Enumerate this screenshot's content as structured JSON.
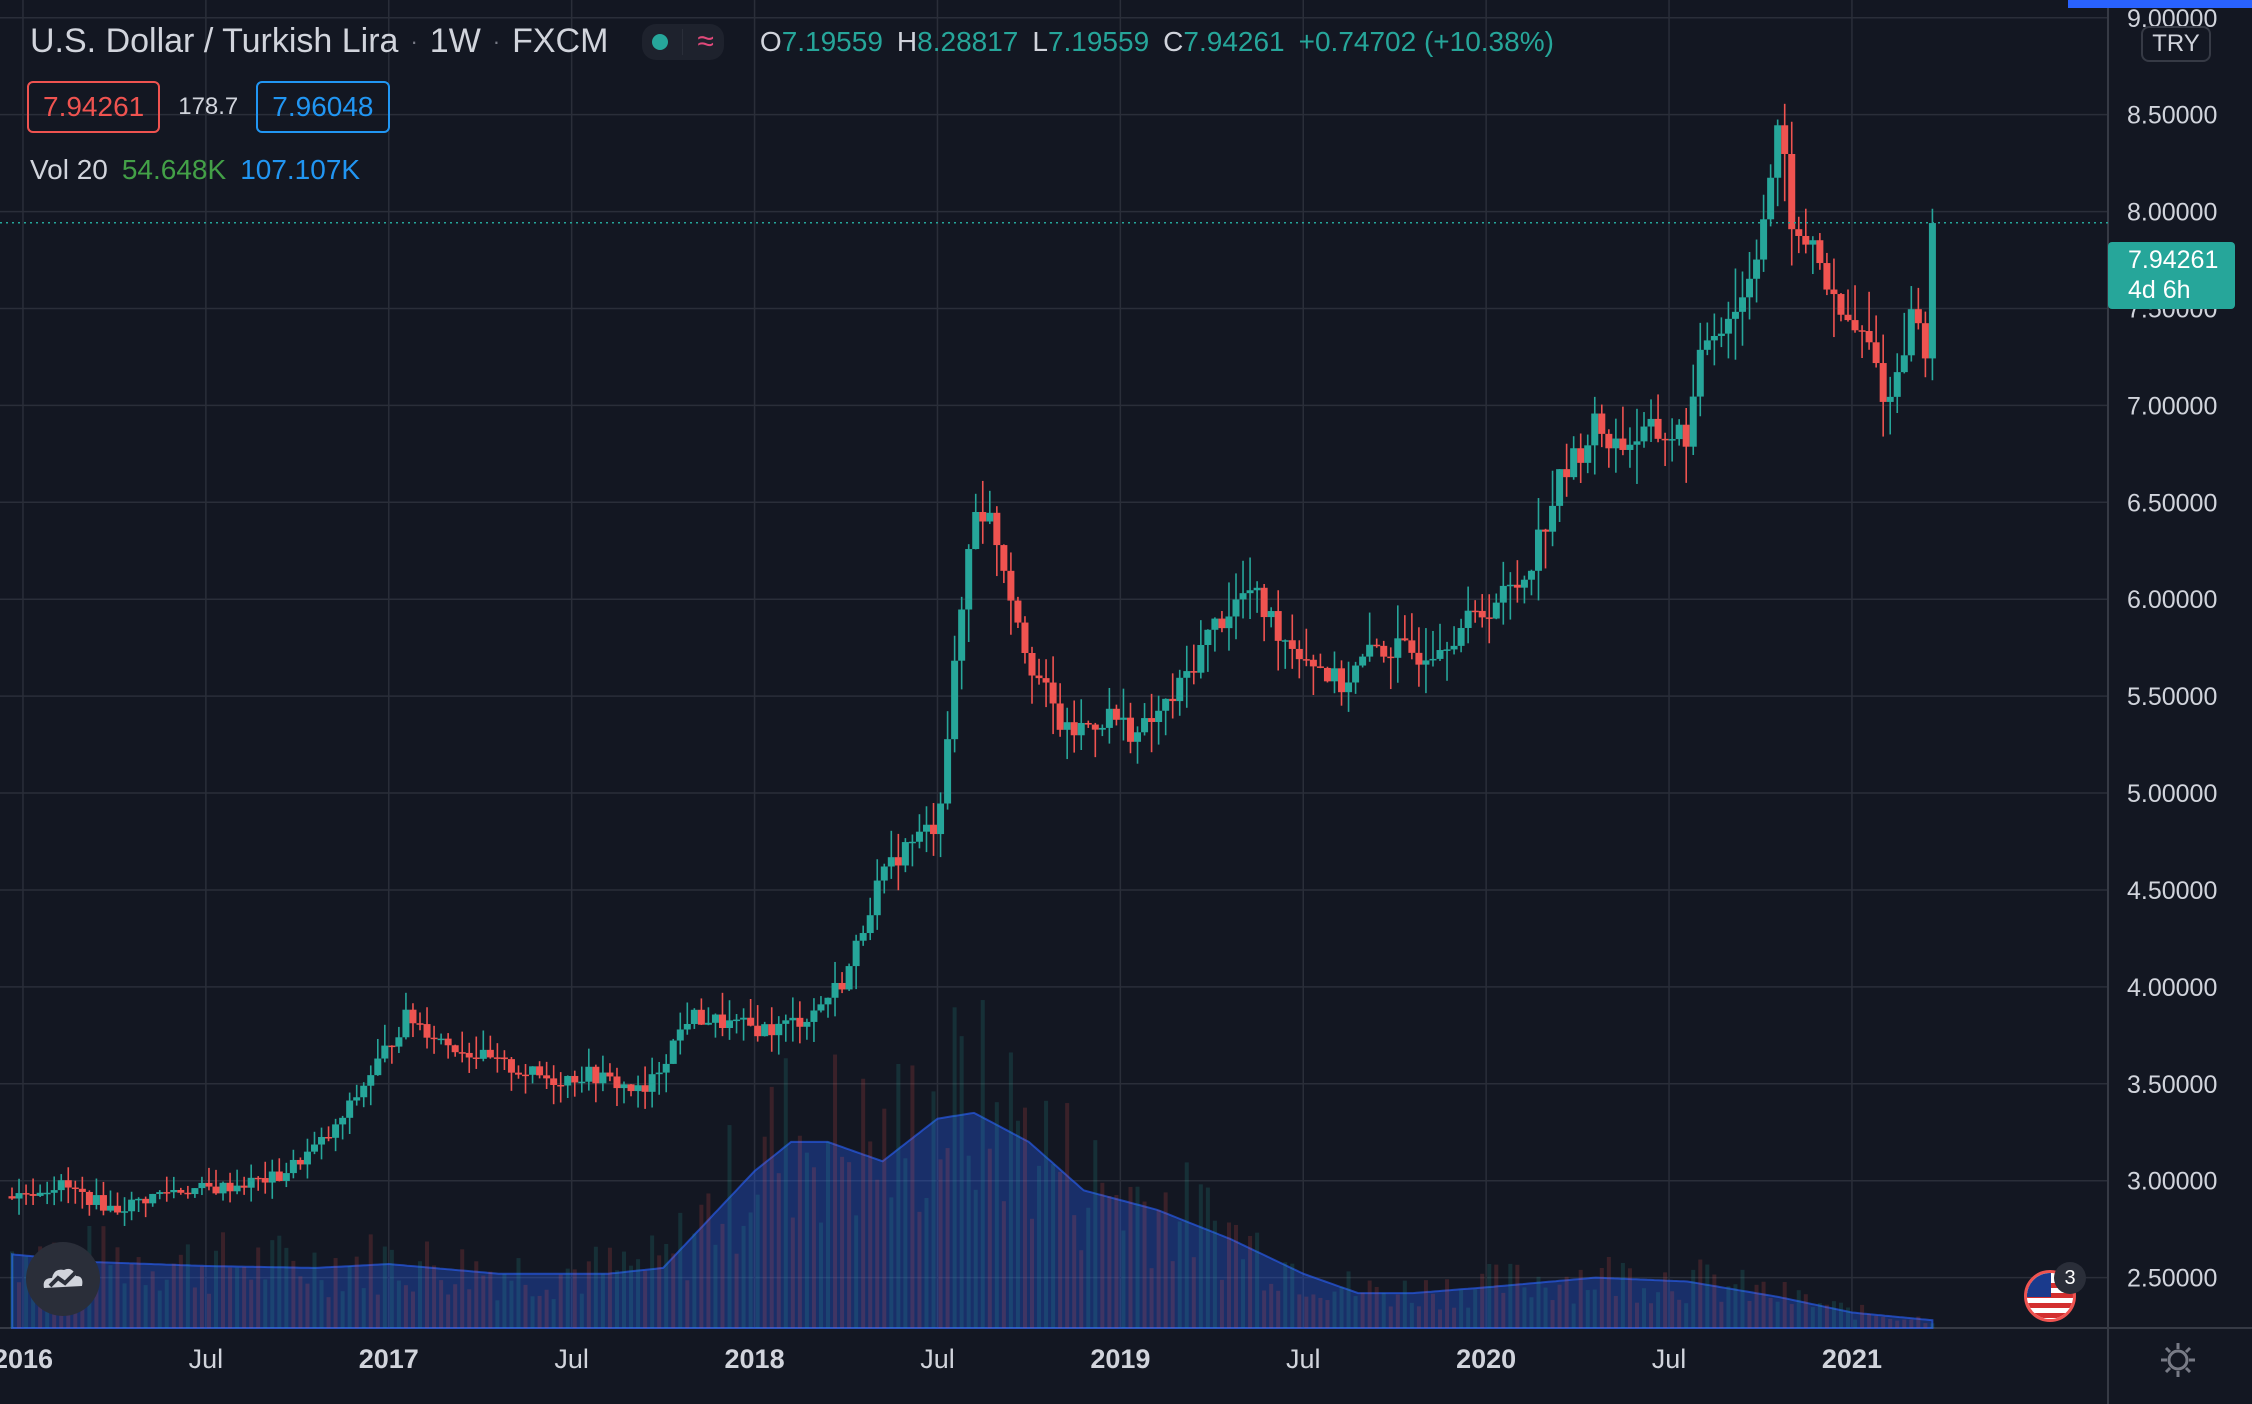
{
  "header": {
    "symbol_title": "U.S. Dollar / Turkish Lira",
    "interval": "1W",
    "exchange": "FXCM",
    "separator": "·",
    "ohlc": {
      "open_key": "O",
      "open": "7.19559",
      "high_key": "H",
      "high": "8.28817",
      "low_key": "L",
      "low": "7.19559",
      "close_key": "C",
      "close": "7.94261",
      "change": "+0.74702 (+10.38%)"
    }
  },
  "price_boxes": {
    "sell": "7.94261",
    "spread": "178.7",
    "buy": "7.96048"
  },
  "volume_legend": {
    "label": "Vol 20",
    "volume": "54.648K",
    "ma": "107.107K"
  },
  "currency_button": "TRY",
  "last_price_label": {
    "price": "7.94261",
    "countdown": "4d 6h"
  },
  "event_badge_count": "3",
  "colors": {
    "background": "#131722",
    "grid": "#2a2e39",
    "up": "#26a69a",
    "down": "#ef5350",
    "volume_area": "#2962ff",
    "text": "#d1d4dc"
  },
  "icons": [
    "tradingview-logo-icon",
    "us-flag-event-icon",
    "settings-gear-icon",
    "market-open-dot-icon",
    "wave-icon"
  ],
  "chart_data": {
    "type": "candlestick",
    "y_axis": {
      "ticks": [
        "9.00000",
        "8.50000",
        "8.00000",
        "7.50000",
        "7.00000",
        "6.50000",
        "6.00000",
        "5.50000",
        "5.00000",
        "4.50000",
        "4.00000",
        "3.50000",
        "3.00000",
        "2.50000"
      ],
      "range": [
        2.24,
        9.04
      ]
    },
    "x_axis": {
      "ticks": [
        {
          "label": "2016",
          "t": 2016.0,
          "bold": true
        },
        {
          "label": "Jul",
          "t": 2016.5,
          "bold": false
        },
        {
          "label": "2017",
          "t": 2017.0,
          "bold": true
        },
        {
          "label": "Jul",
          "t": 2017.5,
          "bold": false
        },
        {
          "label": "2018",
          "t": 2018.0,
          "bold": true
        },
        {
          "label": "Jul",
          "t": 2018.5,
          "bold": false
        },
        {
          "label": "2019",
          "t": 2019.0,
          "bold": true
        },
        {
          "label": "Jul",
          "t": 2019.5,
          "bold": false
        },
        {
          "label": "2020",
          "t": 2020.0,
          "bold": true
        },
        {
          "label": "Jul",
          "t": 2020.5,
          "bold": false
        },
        {
          "label": "2021",
          "t": 2021.0,
          "bold": true
        }
      ],
      "range": [
        2015.97,
        2021.7
      ]
    },
    "price_path": [
      [
        2015.97,
        2.92
      ],
      [
        2016.1,
        2.98
      ],
      [
        2016.25,
        2.85
      ],
      [
        2016.4,
        2.95
      ],
      [
        2016.53,
        2.96
      ],
      [
        2016.7,
        3.02
      ],
      [
        2016.85,
        3.25
      ],
      [
        2016.95,
        3.55
      ],
      [
        2017.05,
        3.85
      ],
      [
        2017.15,
        3.72
      ],
      [
        2017.3,
        3.6
      ],
      [
        2017.45,
        3.52
      ],
      [
        2017.55,
        3.55
      ],
      [
        2017.7,
        3.45
      ],
      [
        2017.82,
        3.85
      ],
      [
        2017.95,
        3.8
      ],
      [
        2018.05,
        3.78
      ],
      [
        2018.15,
        3.85
      ],
      [
        2018.25,
        4.05
      ],
      [
        2018.33,
        4.5
      ],
      [
        2018.4,
        4.7
      ],
      [
        2018.5,
        4.85
      ],
      [
        2018.6,
        6.5
      ],
      [
        2018.65,
        6.4
      ],
      [
        2018.75,
        5.7
      ],
      [
        2018.85,
        5.3
      ],
      [
        2018.97,
        5.4
      ],
      [
        2019.05,
        5.3
      ],
      [
        2019.15,
        5.5
      ],
      [
        2019.25,
        5.85
      ],
      [
        2019.35,
        6.05
      ],
      [
        2019.45,
        5.8
      ],
      [
        2019.55,
        5.65
      ],
      [
        2019.6,
        5.55
      ],
      [
        2019.7,
        5.75
      ],
      [
        2019.82,
        5.72
      ],
      [
        2019.93,
        5.85
      ],
      [
        2020.0,
        5.95
      ],
      [
        2020.1,
        6.1
      ],
      [
        2020.2,
        6.6
      ],
      [
        2020.3,
        6.9
      ],
      [
        2020.35,
        6.8
      ],
      [
        2020.45,
        6.85
      ],
      [
        2020.55,
        6.85
      ],
      [
        2020.6,
        7.35
      ],
      [
        2020.7,
        7.55
      ],
      [
        2020.75,
        7.9
      ],
      [
        2020.8,
        8.4
      ],
      [
        2020.85,
        7.8
      ],
      [
        2020.9,
        7.85
      ],
      [
        2020.95,
        7.5
      ],
      [
        2021.0,
        7.4
      ],
      [
        2021.05,
        7.3
      ],
      [
        2021.1,
        6.99
      ],
      [
        2021.15,
        7.4
      ],
      [
        2021.18,
        7.5
      ],
      [
        2021.2,
        7.19
      ],
      [
        2021.22,
        7.94
      ]
    ],
    "volume_ma_path": [
      [
        2015.97,
        2.62
      ],
      [
        2016.2,
        2.58
      ],
      [
        2016.5,
        2.56
      ],
      [
        2016.8,
        2.55
      ],
      [
        2017.0,
        2.57
      ],
      [
        2017.3,
        2.52
      ],
      [
        2017.6,
        2.52
      ],
      [
        2017.75,
        2.55
      ],
      [
        2017.85,
        2.75
      ],
      [
        2018.0,
        3.05
      ],
      [
        2018.1,
        3.2
      ],
      [
        2018.2,
        3.2
      ],
      [
        2018.35,
        3.1
      ],
      [
        2018.5,
        3.32
      ],
      [
        2018.6,
        3.35
      ],
      [
        2018.75,
        3.2
      ],
      [
        2018.9,
        2.95
      ],
      [
        2019.1,
        2.85
      ],
      [
        2019.3,
        2.7
      ],
      [
        2019.5,
        2.52
      ],
      [
        2019.65,
        2.42
      ],
      [
        2019.8,
        2.42
      ],
      [
        2020.0,
        2.45
      ],
      [
        2020.3,
        2.5
      ],
      [
        2020.55,
        2.48
      ],
      [
        2020.8,
        2.4
      ],
      [
        2021.0,
        2.32
      ],
      [
        2021.22,
        2.28
      ]
    ]
  }
}
